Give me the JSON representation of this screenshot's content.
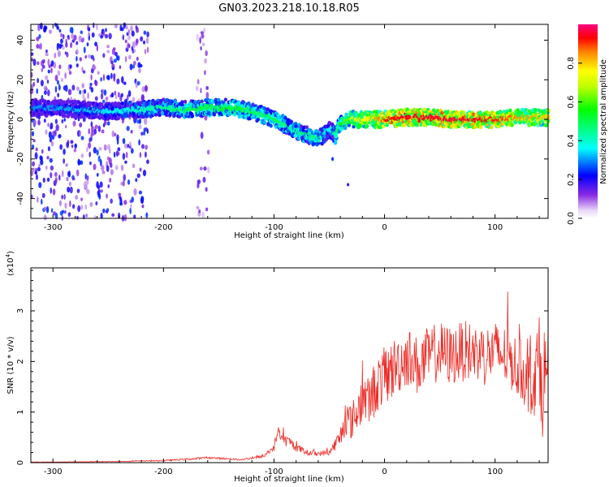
{
  "title": "GN03.2023.218.10.18.R05",
  "chart_data": [
    {
      "type": "heatmap",
      "xlabel": "Height of straight line (km)",
      "ylabel": "Frequency (Hz)",
      "xlim": [
        -320,
        148
      ],
      "ylim": [
        -50,
        48
      ],
      "x_ticks": [
        -300,
        -200,
        -100,
        0,
        100
      ],
      "y_ticks": [
        -40,
        -20,
        0,
        20,
        40
      ],
      "colorbar": {
        "label": "Normalized spectral amplitude",
        "range": [
          0,
          1
        ],
        "ticks": [
          0.0,
          0.2,
          0.4,
          0.6,
          0.8
        ]
      },
      "ridge": {
        "x": [
          -315,
          -280,
          -250,
          -220,
          -200,
          -180,
          -160,
          -140,
          -120,
          -100,
          -80,
          -70,
          -60,
          -50,
          -45,
          -40,
          -30,
          -10,
          0,
          20,
          40,
          60,
          80,
          100,
          120,
          148
        ],
        "freq": [
          6,
          5,
          4,
          5,
          6,
          5,
          6,
          6,
          4,
          0,
          -6,
          -8,
          -10,
          -5,
          -8,
          -2,
          0,
          0,
          0,
          1,
          1,
          0,
          0,
          0,
          1,
          1
        ],
        "amplitude": [
          0.3,
          0.32,
          0.35,
          0.42,
          0.45,
          0.5,
          0.52,
          0.55,
          0.5,
          0.5,
          0.45,
          0.48,
          0.45,
          0.35,
          0.5,
          0.55,
          0.7,
          0.8,
          0.92,
          0.95,
          0.95,
          0.96,
          0.95,
          0.92,
          0.85,
          0.8
        ]
      },
      "scatter_regions": [
        {
          "x": [
            -320,
            -215
          ],
          "freq": [
            -50,
            48
          ],
          "amplitude": 0.2
        },
        {
          "x": [
            -170,
            -160
          ],
          "freq": [
            -50,
            48
          ],
          "amplitude": 0.12
        }
      ]
    },
    {
      "type": "line",
      "xlabel": "Height of straight line (km)",
      "ylabel": "SNR (10 * v/v)",
      "y_multiplier": "(x10",
      "y_multiplier_exp": "4",
      "y_multiplier_close": ")",
      "xlim": [
        -320,
        148
      ],
      "ylim": [
        0,
        3.85
      ],
      "x_ticks": [
        -300,
        -200,
        -100,
        0,
        100
      ],
      "y_ticks": [
        0,
        1,
        2,
        3
      ],
      "series": [
        {
          "color": "#ee2a24",
          "x": [
            -320,
            -250,
            -200,
            -170,
            -160,
            -130,
            -110,
            -100,
            -97,
            -92,
            -85,
            -80,
            -70,
            -60,
            -50,
            -45,
            -40,
            -35,
            -30,
            -25,
            -20,
            -15,
            -10,
            -5,
            0,
            10,
            20,
            30,
            40,
            50,
            60,
            70,
            80,
            90,
            100,
            110,
            120,
            125,
            130,
            135,
            140,
            143,
            145,
            148
          ],
          "y": [
            0.01,
            0.02,
            0.04,
            0.08,
            0.1,
            0.06,
            0.12,
            0.3,
            0.6,
            0.45,
            0.4,
            0.3,
            0.2,
            0.18,
            0.2,
            0.35,
            0.5,
            0.9,
            0.8,
            1.0,
            1.3,
            1.2,
            1.4,
            1.6,
            1.7,
            1.9,
            2.1,
            1.9,
            2.1,
            2.2,
            2.1,
            2.2,
            2.2,
            2.1,
            2.2,
            2.1,
            1.9,
            1.8,
            1.6,
            1.7,
            2.0,
            1.5,
            1.8,
            1.7
          ],
          "noise": [
            0.003,
            0.006,
            0.012,
            0.02,
            0.02,
            0.015,
            0.03,
            0.08,
            0.15,
            0.12,
            0.1,
            0.08,
            0.06,
            0.05,
            0.05,
            0.12,
            0.2,
            0.35,
            0.35,
            0.45,
            0.5,
            0.5,
            0.55,
            0.55,
            0.6,
            0.6,
            0.6,
            0.6,
            0.6,
            0.6,
            0.6,
            0.6,
            0.6,
            0.6,
            0.6,
            0.6,
            0.6,
            0.6,
            0.7,
            0.8,
            0.9,
            1.0,
            1.0,
            0.9
          ]
        }
      ]
    }
  ]
}
